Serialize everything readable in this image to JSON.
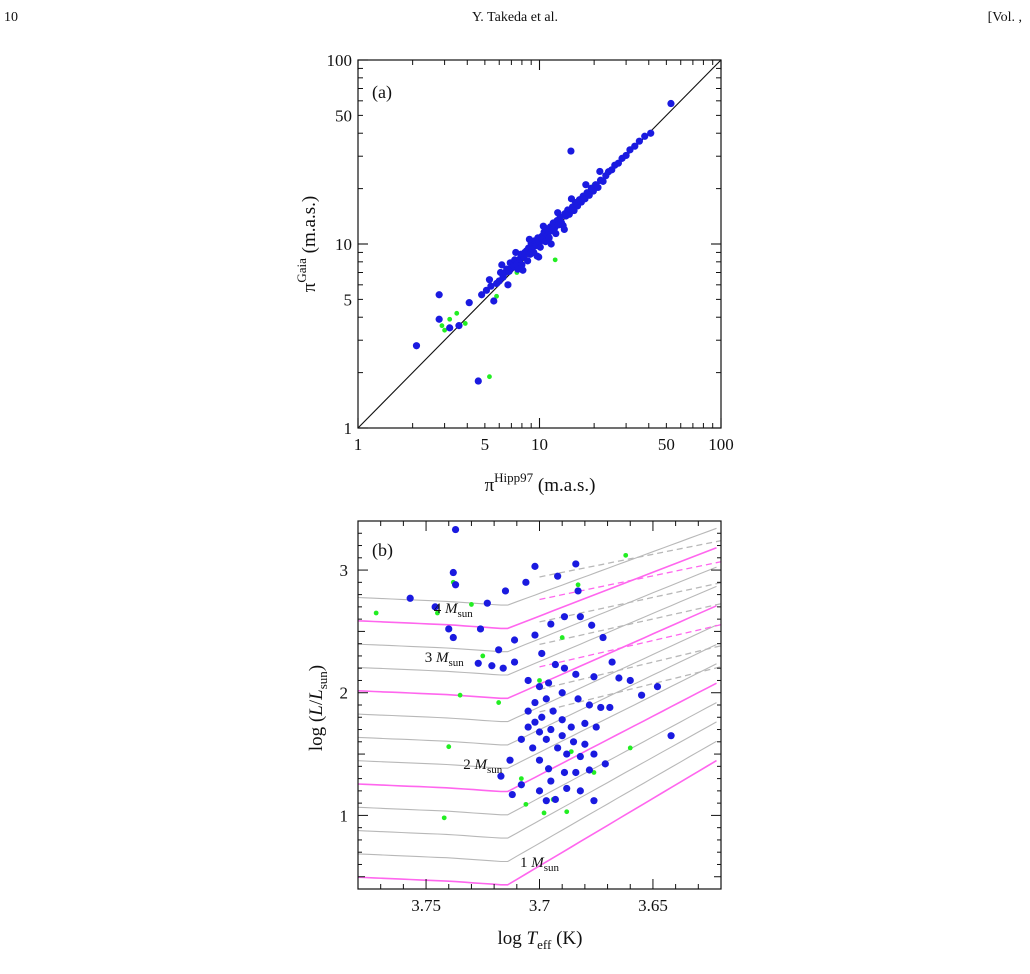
{
  "header": {
    "page_number": "10",
    "authors": "Y. Takeda et al.",
    "volume": "[Vol. ,"
  },
  "colors": {
    "blue_points": "#1a1ae0",
    "green_points": "#22ee22",
    "magenta_tracks": "#ff66ee",
    "gray_tracks": "#b8b8b8"
  },
  "chart_data": [
    {
      "type": "scatter",
      "panel_label": "(a)",
      "title": "",
      "xlabel": "π^Hipp97 (m.a.s.)",
      "ylabel": "π^Gaia (m.a.s.)",
      "xlabel_parts": {
        "symbol": "π",
        "sup": "Hipp97",
        "unit": " (m.a.s.)"
      },
      "ylabel_parts": {
        "symbol": "π",
        "sup": "Gaia",
        "unit": " (m.a.s.)"
      },
      "xscale": "log",
      "yscale": "log",
      "xlim": [
        1,
        100
      ],
      "ylim": [
        1,
        100
      ],
      "x_tick_labels": [
        "1",
        "5",
        "10",
        "50",
        "100"
      ],
      "y_tick_labels": [
        "1",
        "5",
        "10",
        "50",
        "100"
      ],
      "x_ticks": [
        1,
        5,
        10,
        50,
        100
      ],
      "y_ticks": [
        1,
        5,
        10,
        50,
        100
      ],
      "reference_line": "y = x",
      "series": [
        {
          "color": "blue",
          "points": [
            [
              2.1,
              2.8
            ],
            [
              2.8,
              5.3
            ],
            [
              2.8,
              3.9
            ],
            [
              3.2,
              3.5
            ],
            [
              3.6,
              3.6
            ],
            [
              4.1,
              4.8
            ],
            [
              4.6,
              1.8
            ],
            [
              4.8,
              5.3
            ],
            [
              5.1,
              5.6
            ],
            [
              5.4,
              5.9
            ],
            [
              5.6,
              4.9
            ],
            [
              5.8,
              6.1
            ],
            [
              6.0,
              6.3
            ],
            [
              6.1,
              7.0
            ],
            [
              6.3,
              6.6
            ],
            [
              6.5,
              7.0
            ],
            [
              6.6,
              7.3
            ],
            [
              6.8,
              7.1
            ],
            [
              6.9,
              7.9
            ],
            [
              7.0,
              7.4
            ],
            [
              7.2,
              7.6
            ],
            [
              7.3,
              8.2
            ],
            [
              7.5,
              7.8
            ],
            [
              7.6,
              7.3
            ],
            [
              7.8,
              8.3
            ],
            [
              7.9,
              8.8
            ],
            [
              8.0,
              7.7
            ],
            [
              8.2,
              8.5
            ],
            [
              8.3,
              9.0
            ],
            [
              8.5,
              9.2
            ],
            [
              8.6,
              8.1
            ],
            [
              8.7,
              9.5
            ],
            [
              8.9,
              8.8
            ],
            [
              9.0,
              10.1
            ],
            [
              9.1,
              9.4
            ],
            [
              9.3,
              9.0
            ],
            [
              9.4,
              10.4
            ],
            [
              9.6,
              9.8
            ],
            [
              9.7,
              8.6
            ],
            [
              9.8,
              10.8
            ],
            [
              10.0,
              10.2
            ],
            [
              10.1,
              9.6
            ],
            [
              10.3,
              11.0
            ],
            [
              10.4,
              10.6
            ],
            [
              10.6,
              11.6
            ],
            [
              10.8,
              10.3
            ],
            [
              10.9,
              12.1
            ],
            [
              11.1,
              11.2
            ],
            [
              11.3,
              10.8
            ],
            [
              11.5,
              12.4
            ],
            [
              11.7,
              11.8
            ],
            [
              11.9,
              13.0
            ],
            [
              12.1,
              12.2
            ],
            [
              12.3,
              11.4
            ],
            [
              12.5,
              13.4
            ],
            [
              12.7,
              12.7
            ],
            [
              13.0,
              14.0
            ],
            [
              13.2,
              13.1
            ],
            [
              13.5,
              12.6
            ],
            [
              13.8,
              14.6
            ],
            [
              14.0,
              14.2
            ],
            [
              14.3,
              15.3
            ],
            [
              14.6,
              14.5
            ],
            [
              14.9,
              32.0
            ],
            [
              15.2,
              15.9
            ],
            [
              15.5,
              15.2
            ],
            [
              15.8,
              16.8
            ],
            [
              16.2,
              16.1
            ],
            [
              16.6,
              17.4
            ],
            [
              17.0,
              16.9
            ],
            [
              17.4,
              18.2
            ],
            [
              17.8,
              17.6
            ],
            [
              18.3,
              19.0
            ],
            [
              18.8,
              18.4
            ],
            [
              19.3,
              20.1
            ],
            [
              19.8,
              19.4
            ],
            [
              20.4,
              21.0
            ],
            [
              21.0,
              20.3
            ],
            [
              21.7,
              22.2
            ],
            [
              22.4,
              21.9
            ],
            [
              23.2,
              23.5
            ],
            [
              24.0,
              24.7
            ],
            [
              25.0,
              25.3
            ],
            [
              26.0,
              26.8
            ],
            [
              27.2,
              27.5
            ],
            [
              28.5,
              29.2
            ],
            [
              30.0,
              30.3
            ],
            [
              31.5,
              32.5
            ],
            [
              33.5,
              34.0
            ],
            [
              35.5,
              36.2
            ],
            [
              38.0,
              38.5
            ],
            [
              41.0,
              40.0
            ],
            [
              53.0,
              58.0
            ],
            [
              6.7,
              6.0
            ],
            [
              8.1,
              7.2
            ],
            [
              9.9,
              8.5
            ],
            [
              11.6,
              10.0
            ],
            [
              13.7,
              12.0
            ],
            [
              5.3,
              6.4
            ],
            [
              6.2,
              7.7
            ],
            [
              7.4,
              9.0
            ],
            [
              8.8,
              10.6
            ],
            [
              10.5,
              12.5
            ],
            [
              12.6,
              14.8
            ],
            [
              15.0,
              17.6
            ],
            [
              18.0,
              21.0
            ],
            [
              21.5,
              24.8
            ]
          ]
        },
        {
          "color": "green",
          "points": [
            [
              2.9,
              3.6
            ],
            [
              3.0,
              3.4
            ],
            [
              3.2,
              3.9
            ],
            [
              3.5,
              4.2
            ],
            [
              3.9,
              3.7
            ],
            [
              5.3,
              1.9
            ],
            [
              5.8,
              5.2
            ],
            [
              6.4,
              6.8
            ],
            [
              7.5,
              7.0
            ],
            [
              9.0,
              9.5
            ],
            [
              12.2,
              8.2
            ],
            [
              14.0,
              14.5
            ],
            [
              20.0,
              21.0
            ],
            [
              32.0,
              33.0
            ],
            [
              10.5,
              10.9
            ]
          ]
        }
      ]
    },
    {
      "type": "scatter",
      "panel_label": "(b)",
      "title": "",
      "xlabel": "log T_eff (K)",
      "ylabel": "log (L/L_sun)",
      "xlabel_parts": {
        "pre": "log ",
        "var": "T",
        "sub": "eff",
        "post": " (K)"
      },
      "ylabel_parts": {
        "pre": "log (",
        "var": "L",
        "mid": "/",
        "var2": "L",
        "sub": "sun",
        "post": ")"
      },
      "xlim": [
        3.78,
        3.62
      ],
      "ylim": [
        0.4,
        3.4
      ],
      "x_tick_labels": [
        "3.75",
        "3.7",
        "3.65"
      ],
      "y_tick_labels": [
        "1",
        "2",
        "3"
      ],
      "x_ticks": [
        3.75,
        3.7,
        3.65
      ],
      "y_ticks": [
        1,
        2,
        3
      ],
      "annotations": [
        {
          "value": "4",
          "sub": "sun",
          "x": 3.738,
          "y": 2.65
        },
        {
          "value": "3",
          "sub": "sun",
          "x": 3.742,
          "y": 2.25
        },
        {
          "value": "2",
          "sub": "sun",
          "x": 3.725,
          "y": 1.38
        },
        {
          "value": "1",
          "sub": "sun",
          "x": 3.7,
          "y": 0.58
        }
      ],
      "mass_symbol": "M",
      "series": [
        {
          "color": "blue",
          "points": [
            [
              3.737,
              3.33
            ],
            [
              3.723,
              2.73
            ],
            [
              3.702,
              3.03
            ],
            [
              3.684,
              3.05
            ],
            [
              3.692,
              2.95
            ],
            [
              3.738,
              2.98
            ],
            [
              3.757,
              2.77
            ],
            [
              3.737,
              2.88
            ],
            [
              3.746,
              2.7
            ],
            [
              3.74,
              2.52
            ],
            [
              3.726,
              2.52
            ],
            [
              3.706,
              2.9
            ],
            [
              3.715,
              2.83
            ],
            [
              3.683,
              2.83
            ],
            [
              3.682,
              2.62
            ],
            [
              3.689,
              2.62
            ],
            [
              3.677,
              2.55
            ],
            [
              3.695,
              2.56
            ],
            [
              3.702,
              2.47
            ],
            [
              3.711,
              2.43
            ],
            [
              3.718,
              2.35
            ],
            [
              3.738,
              2.45
            ],
            [
              3.727,
              2.24
            ],
            [
              3.721,
              2.22
            ],
            [
              3.716,
              2.2
            ],
            [
              3.711,
              2.25
            ],
            [
              3.699,
              2.32
            ],
            [
              3.693,
              2.23
            ],
            [
              3.689,
              2.2
            ],
            [
              3.684,
              2.15
            ],
            [
              3.676,
              2.13
            ],
            [
              3.668,
              2.25
            ],
            [
              3.665,
              2.12
            ],
            [
              3.7,
              2.05
            ],
            [
              3.705,
              2.1
            ],
            [
              3.696,
              2.08
            ],
            [
              3.69,
              2.0
            ],
            [
              3.683,
              1.95
            ],
            [
              3.678,
              1.9
            ],
            [
              3.673,
              1.88
            ],
            [
              3.669,
              1.88
            ],
            [
              3.697,
              1.95
            ],
            [
              3.702,
              1.92
            ],
            [
              3.705,
              1.85
            ],
            [
              3.694,
              1.85
            ],
            [
              3.699,
              1.8
            ],
            [
              3.702,
              1.76
            ],
            [
              3.69,
              1.78
            ],
            [
              3.686,
              1.72
            ],
            [
              3.68,
              1.75
            ],
            [
              3.675,
              1.72
            ],
            [
              3.695,
              1.7
            ],
            [
              3.7,
              1.68
            ],
            [
              3.69,
              1.65
            ],
            [
              3.685,
              1.6
            ],
            [
              3.68,
              1.58
            ],
            [
              3.697,
              1.62
            ],
            [
              3.705,
              1.72
            ],
            [
              3.708,
              1.62
            ],
            [
              3.692,
              1.55
            ],
            [
              3.688,
              1.5
            ],
            [
              3.682,
              1.48
            ],
            [
              3.676,
              1.5
            ],
            [
              3.671,
              1.42
            ],
            [
              3.7,
              1.45
            ],
            [
              3.696,
              1.38
            ],
            [
              3.689,
              1.35
            ],
            [
              3.684,
              1.35
            ],
            [
              3.678,
              1.37
            ],
            [
              3.695,
              1.28
            ],
            [
              3.688,
              1.22
            ],
            [
              3.682,
              1.2
            ],
            [
              3.676,
              1.12
            ],
            [
              3.693,
              1.13
            ],
            [
              3.7,
              1.2
            ],
            [
              3.708,
              1.25
            ],
            [
              3.712,
              1.17
            ],
            [
              3.717,
              1.32
            ],
            [
              3.713,
              1.45
            ],
            [
              3.648,
              2.05
            ],
            [
              3.642,
              1.65
            ],
            [
              3.655,
              1.98
            ],
            [
              3.66,
              2.1
            ],
            [
              3.672,
              2.45
            ],
            [
              3.703,
              1.55
            ],
            [
              3.697,
              1.12
            ]
          ]
        },
        {
          "color": "green",
          "points": [
            [
              3.772,
              2.65
            ],
            [
              3.738,
              2.9
            ],
            [
              3.73,
              2.72
            ],
            [
              3.683,
              2.88
            ],
            [
              3.662,
              3.12
            ],
            [
              3.745,
              2.65
            ],
            [
              3.725,
              2.3
            ],
            [
              3.735,
              1.98
            ],
            [
              3.718,
              1.92
            ],
            [
              3.74,
              1.56
            ],
            [
              3.742,
              0.98
            ],
            [
              3.708,
              1.3
            ],
            [
              3.706,
              1.09
            ],
            [
              3.694,
              1.13
            ],
            [
              3.698,
              1.02
            ],
            [
              3.688,
              1.03
            ],
            [
              3.676,
              1.35
            ],
            [
              3.686,
              1.52
            ],
            [
              3.66,
              1.55
            ],
            [
              3.7,
              2.1
            ],
            [
              3.69,
              2.45
            ]
          ]
        }
      ]
    }
  ]
}
